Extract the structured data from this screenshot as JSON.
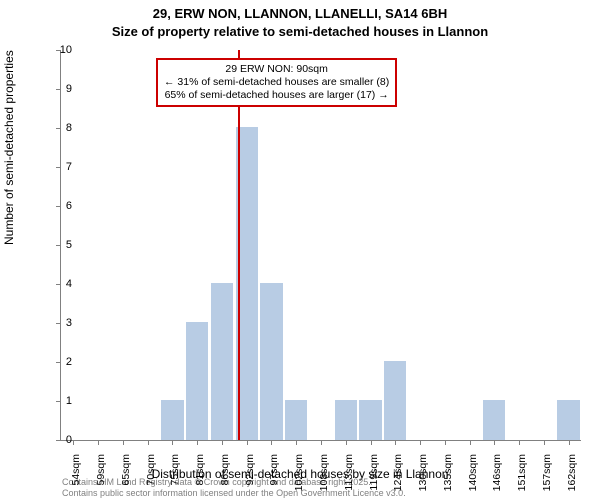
{
  "chart": {
    "type": "histogram",
    "title_line1": "29, ERW NON, LLANNON, LLANELLI, SA14 6BH",
    "title_line2": "Size of property relative to semi-detached houses in Llannon",
    "title_fontsize": 13,
    "xlabel": "Distribution of semi-detached houses by size in Llannon",
    "ylabel": "Number of semi-detached properties",
    "label_fontsize": 12,
    "background_color": "#ffffff",
    "axis_color": "#808080",
    "bar_color": "#b8cce4",
    "bar_border_color": "#b8cce4",
    "marker_color": "#cc0000",
    "x_categories": [
      "54sqm",
      "59sqm",
      "65sqm",
      "70sqm",
      "75sqm",
      "81sqm",
      "86sqm",
      "92sqm",
      "97sqm",
      "102sqm",
      "108sqm",
      "113sqm",
      "119sqm",
      "124sqm",
      "130sqm",
      "135sqm",
      "140sqm",
      "146sqm",
      "151sqm",
      "157sqm",
      "162sqm"
    ],
    "values": [
      0,
      0,
      0,
      0,
      1,
      3,
      4,
      8,
      4,
      1,
      0,
      1,
      1,
      2,
      0,
      0,
      0,
      1,
      0,
      0,
      1
    ],
    "ylim": [
      0,
      10
    ],
    "ytick_step": 1,
    "bar_width": 0.9,
    "marker_value_sqm": 90,
    "x_tick_fontsize": 10.5,
    "y_tick_fontsize": 11,
    "annotation": {
      "line1": "29 ERW NON: 90sqm",
      "line2": "← 31% of semi-detached houses are smaller (8)",
      "line3": "65% of semi-detached houses are larger (17) →",
      "border_color": "#cc0000",
      "background_color": "#ffffff",
      "fontsize": 10.5
    },
    "footer_line1": "Contains HM Land Registry data © Crown copyright and database right 2025.",
    "footer_line2": "Contains public sector information licensed under the Open Government Licence v3.0.",
    "footer_color": "#808080",
    "footer_fontsize": 9
  }
}
